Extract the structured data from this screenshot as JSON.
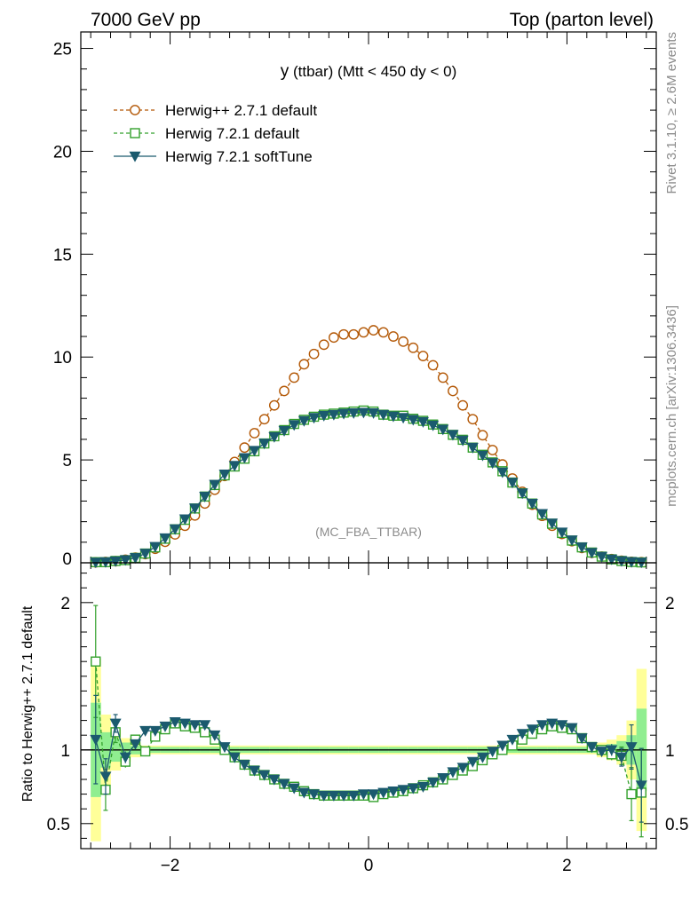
{
  "header": {
    "left_title": "7000 GeV pp",
    "right_title": "Top (parton level)"
  },
  "side": {
    "rivet_label": "Rivet 3.1.10, ≥ 2.6M events",
    "mcplots_label": "mcplots.cern.ch [arXiv:1306.3436]"
  },
  "plot_title": {
    "var": "y",
    "rest": " (ttbar) (Mtt < 450 dy < 0)"
  },
  "watermark": "(MC_FBA_TTBAR)",
  "ratio_ylabel": "Ratio to Herwig++ 2.7.1 default",
  "chart_data": [
    {
      "type": "line",
      "panel": "main",
      "title": "y (ttbar) (Mtt < 450 dy < 0)",
      "xlabel": "",
      "ylabel": "",
      "xlim": [
        -2.9,
        2.9
      ],
      "ylim": [
        0,
        25.8
      ],
      "yticks": [
        0,
        5,
        10,
        15,
        20,
        25
      ],
      "ytick_labels": [
        "0",
        "5",
        "10",
        "15",
        "20",
        "25"
      ],
      "x": [
        -2.75,
        -2.65,
        -2.55,
        -2.45,
        -2.35,
        -2.25,
        -2.15,
        -2.05,
        -1.95,
        -1.85,
        -1.75,
        -1.65,
        -1.55,
        -1.45,
        -1.35,
        -1.25,
        -1.15,
        -1.05,
        -0.95,
        -0.85,
        -0.75,
        -0.65,
        -0.55,
        -0.45,
        -0.35,
        -0.25,
        -0.15,
        -0.05,
        0.05,
        0.15,
        0.25,
        0.35,
        0.45,
        0.55,
        0.65,
        0.75,
        0.85,
        0.95,
        1.05,
        1.15,
        1.25,
        1.35,
        1.45,
        1.55,
        1.65,
        1.75,
        1.85,
        1.95,
        2.05,
        2.15,
        2.25,
        2.35,
        2.45,
        2.55,
        2.65,
        2.75
      ],
      "series": [
        {
          "name": "Herwig++ 2.7.1 default",
          "color": "#b35806",
          "marker": "open-circle",
          "dash": "dashed",
          "values": [
            0.02,
            0.04,
            0.08,
            0.15,
            0.25,
            0.42,
            0.68,
            1.02,
            1.38,
            1.8,
            2.3,
            2.88,
            3.55,
            4.22,
            4.9,
            5.6,
            6.3,
            6.98,
            7.65,
            8.35,
            9.0,
            9.65,
            10.15,
            10.6,
            10.95,
            11.1,
            11.1,
            11.2,
            11.3,
            11.2,
            11.0,
            10.75,
            10.45,
            10.05,
            9.6,
            9.0,
            8.35,
            7.65,
            6.98,
            6.2,
            5.48,
            4.78,
            4.1,
            3.45,
            2.82,
            2.28,
            1.8,
            1.4,
            1.05,
            0.72,
            0.48,
            0.3,
            0.18,
            0.1,
            0.05,
            0.03
          ]
        },
        {
          "name": "Herwig 7.2.1 default",
          "color": "#33a02c",
          "marker": "open-square",
          "dash": "dashed",
          "values": [
            0.03,
            0.03,
            0.09,
            0.13,
            0.24,
            0.45,
            0.75,
            1.17,
            1.63,
            2.09,
            2.64,
            3.22,
            3.78,
            4.25,
            4.68,
            5.06,
            5.42,
            5.8,
            6.15,
            6.45,
            6.75,
            6.95,
            7.1,
            7.2,
            7.25,
            7.3,
            7.35,
            7.4,
            7.35,
            7.2,
            7.15,
            7.15,
            7.0,
            6.9,
            6.72,
            6.5,
            6.22,
            5.98,
            5.6,
            5.25,
            4.88,
            4.45,
            3.9,
            3.38,
            2.88,
            2.35,
            1.9,
            1.45,
            1.08,
            0.75,
            0.5,
            0.3,
            0.17,
            0.09,
            0.04,
            0.02
          ]
        },
        {
          "name": "Herwig 7.2.1 softTune",
          "color": "#1b5a6e",
          "marker": "filled-triangle-down",
          "dash": "solid",
          "values": [
            0.02,
            0.04,
            0.08,
            0.14,
            0.24,
            0.45,
            0.78,
            1.2,
            1.64,
            2.12,
            2.65,
            3.22,
            3.8,
            4.3,
            4.72,
            5.1,
            5.45,
            5.8,
            6.12,
            6.42,
            6.7,
            6.9,
            7.05,
            7.15,
            7.2,
            7.25,
            7.28,
            7.3,
            7.28,
            7.2,
            7.12,
            7.05,
            6.95,
            6.85,
            6.68,
            6.48,
            6.22,
            5.95,
            5.6,
            5.22,
            4.85,
            4.4,
            3.9,
            3.38,
            2.88,
            2.38,
            1.92,
            1.48,
            1.1,
            0.76,
            0.49,
            0.3,
            0.17,
            0.09,
            0.045,
            0.02
          ]
        }
      ]
    },
    {
      "type": "line",
      "panel": "ratio",
      "xlabel": "",
      "ylabel": "Ratio to Herwig++ 2.7.1 default",
      "xlim": [
        -2.9,
        2.9
      ],
      "ylim": [
        0.33,
        2.27
      ],
      "yticks": [
        0.5,
        1,
        2
      ],
      "ytick_labels": [
        "0.5",
        "1",
        "2"
      ],
      "xticks": [
        -2,
        0,
        2
      ],
      "xtick_labels": [
        "−2",
        "0",
        "2"
      ],
      "reference": 1.0,
      "x": [
        -2.75,
        -2.65,
        -2.55,
        -2.45,
        -2.35,
        -2.25,
        -2.15,
        -2.05,
        -1.95,
        -1.85,
        -1.75,
        -1.65,
        -1.55,
        -1.45,
        -1.35,
        -1.25,
        -1.15,
        -1.05,
        -0.95,
        -0.85,
        -0.75,
        -0.65,
        -0.55,
        -0.45,
        -0.35,
        -0.25,
        -0.15,
        -0.05,
        0.05,
        0.15,
        0.25,
        0.35,
        0.45,
        0.55,
        0.65,
        0.75,
        0.85,
        0.95,
        1.05,
        1.15,
        1.25,
        1.35,
        1.45,
        1.55,
        1.65,
        1.75,
        1.85,
        1.95,
        2.05,
        2.15,
        2.25,
        2.35,
        2.45,
        2.55,
        2.65,
        2.75
      ],
      "band_inner": [
        0.32,
        0.12,
        0.08,
        0.05,
        0.03,
        0.02,
        0.02,
        0.02,
        0.02,
        0.02,
        0.02,
        0.02,
        0.02,
        0.02,
        0.02,
        0.02,
        0.02,
        0.02,
        0.02,
        0.02,
        0.02,
        0.02,
        0.02,
        0.02,
        0.02,
        0.02,
        0.02,
        0.02,
        0.02,
        0.02,
        0.02,
        0.02,
        0.02,
        0.02,
        0.02,
        0.02,
        0.02,
        0.02,
        0.02,
        0.02,
        0.02,
        0.02,
        0.02,
        0.02,
        0.02,
        0.02,
        0.02,
        0.02,
        0.02,
        0.02,
        0.02,
        0.03,
        0.04,
        0.06,
        0.1,
        0.28
      ],
      "band_outer": [
        0.62,
        0.24,
        0.14,
        0.08,
        0.05,
        0.03,
        0.03,
        0.03,
        0.03,
        0.03,
        0.03,
        0.03,
        0.03,
        0.03,
        0.03,
        0.03,
        0.03,
        0.03,
        0.03,
        0.03,
        0.03,
        0.03,
        0.03,
        0.03,
        0.03,
        0.03,
        0.03,
        0.03,
        0.03,
        0.03,
        0.03,
        0.03,
        0.03,
        0.03,
        0.03,
        0.03,
        0.03,
        0.03,
        0.03,
        0.03,
        0.03,
        0.03,
        0.03,
        0.03,
        0.03,
        0.03,
        0.03,
        0.03,
        0.03,
        0.03,
        0.03,
        0.05,
        0.07,
        0.1,
        0.2,
        0.55
      ],
      "series": [
        {
          "name": "Herwig 7.2.1 default",
          "color": "#33a02c",
          "marker": "open-square",
          "dash": "dashed",
          "values": [
            1.6,
            0.73,
            1.12,
            0.92,
            1.07,
            0.99,
            1.09,
            1.14,
            1.18,
            1.16,
            1.15,
            1.12,
            1.07,
            1.0,
            0.95,
            0.9,
            0.86,
            0.83,
            0.8,
            0.77,
            0.75,
            0.72,
            0.7,
            0.69,
            0.69,
            0.69,
            0.69,
            0.69,
            0.68,
            0.7,
            0.71,
            0.72,
            0.74,
            0.76,
            0.78,
            0.8,
            0.83,
            0.86,
            0.89,
            0.93,
            0.97,
            1.0,
            1.03,
            1.07,
            1.11,
            1.14,
            1.16,
            1.15,
            1.14,
            1.08,
            1.02,
            1.0,
            0.97,
            0.96,
            0.7,
            0.71
          ],
          "errors": [
            0.38,
            0.14,
            0.07,
            0.04,
            0.03,
            0.02,
            0.02,
            0.02,
            0.02,
            0.02,
            0.02,
            0.02,
            0.02,
            0.02,
            0.02,
            0.02,
            0.02,
            0.02,
            0.02,
            0.02,
            0.02,
            0.02,
            0.02,
            0.02,
            0.02,
            0.02,
            0.02,
            0.02,
            0.02,
            0.02,
            0.02,
            0.02,
            0.02,
            0.02,
            0.02,
            0.02,
            0.02,
            0.02,
            0.02,
            0.02,
            0.02,
            0.02,
            0.02,
            0.02,
            0.02,
            0.02,
            0.02,
            0.02,
            0.02,
            0.02,
            0.02,
            0.03,
            0.04,
            0.06,
            0.18,
            0.3
          ]
        },
        {
          "name": "Herwig 7.2.1 softTune",
          "color": "#1b5a6e",
          "marker": "filled-triangle-down",
          "dash": "solid",
          "values": [
            1.07,
            0.82,
            1.18,
            0.95,
            1.04,
            1.13,
            1.13,
            1.16,
            1.19,
            1.18,
            1.17,
            1.17,
            1.1,
            1.02,
            0.95,
            0.9,
            0.86,
            0.83,
            0.8,
            0.77,
            0.74,
            0.71,
            0.7,
            0.69,
            0.69,
            0.69,
            0.69,
            0.7,
            0.7,
            0.71,
            0.72,
            0.73,
            0.74,
            0.75,
            0.78,
            0.81,
            0.85,
            0.88,
            0.92,
            0.95,
            0.99,
            1.03,
            1.07,
            1.11,
            1.14,
            1.17,
            1.18,
            1.17,
            1.15,
            1.08,
            1.02,
            0.99,
            1.0,
            0.95,
            1.02,
            0.76
          ],
          "errors": [
            0.3,
            0.12,
            0.06,
            0.04,
            0.03,
            0.02,
            0.02,
            0.02,
            0.02,
            0.02,
            0.02,
            0.02,
            0.02,
            0.02,
            0.02,
            0.02,
            0.02,
            0.02,
            0.02,
            0.02,
            0.02,
            0.02,
            0.02,
            0.02,
            0.02,
            0.02,
            0.02,
            0.02,
            0.02,
            0.02,
            0.02,
            0.02,
            0.02,
            0.02,
            0.02,
            0.02,
            0.02,
            0.02,
            0.02,
            0.02,
            0.02,
            0.02,
            0.02,
            0.02,
            0.02,
            0.02,
            0.02,
            0.02,
            0.02,
            0.02,
            0.02,
            0.03,
            0.04,
            0.06,
            0.15,
            0.25
          ]
        }
      ]
    }
  ]
}
